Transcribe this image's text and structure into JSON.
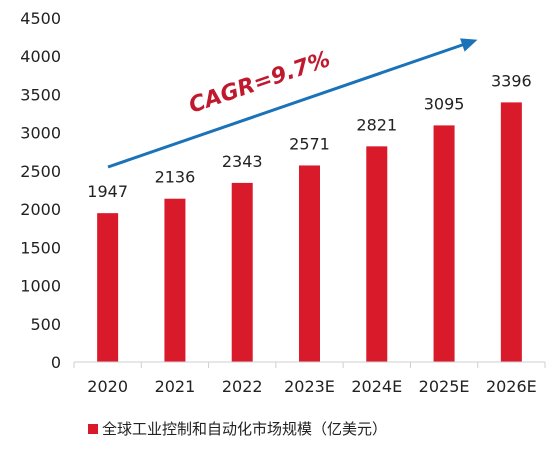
{
  "chart_data": {
    "type": "bar",
    "categories": [
      "2020",
      "2021",
      "2022",
      "2023E",
      "2024E",
      "2025E",
      "2026E"
    ],
    "series": [
      {
        "name": "全球工业控制和自动化市场规模（亿美元）",
        "values": [
          1947,
          2136,
          2343,
          2571,
          2821,
          3095,
          3396
        ]
      }
    ],
    "ylim": [
      0,
      4500
    ],
    "yticks": [
      0,
      500,
      1000,
      1500,
      2000,
      2500,
      3000,
      3500,
      4000,
      4500
    ],
    "grid": false,
    "legend_position": "bottom-left",
    "annotation": {
      "text": "CAGR=9.7%",
      "text_color": "#c0192d",
      "arrow_color": "#1a72b8"
    },
    "colors": {
      "bar": "#d91a2a",
      "axis": "#cfcfcf"
    }
  }
}
